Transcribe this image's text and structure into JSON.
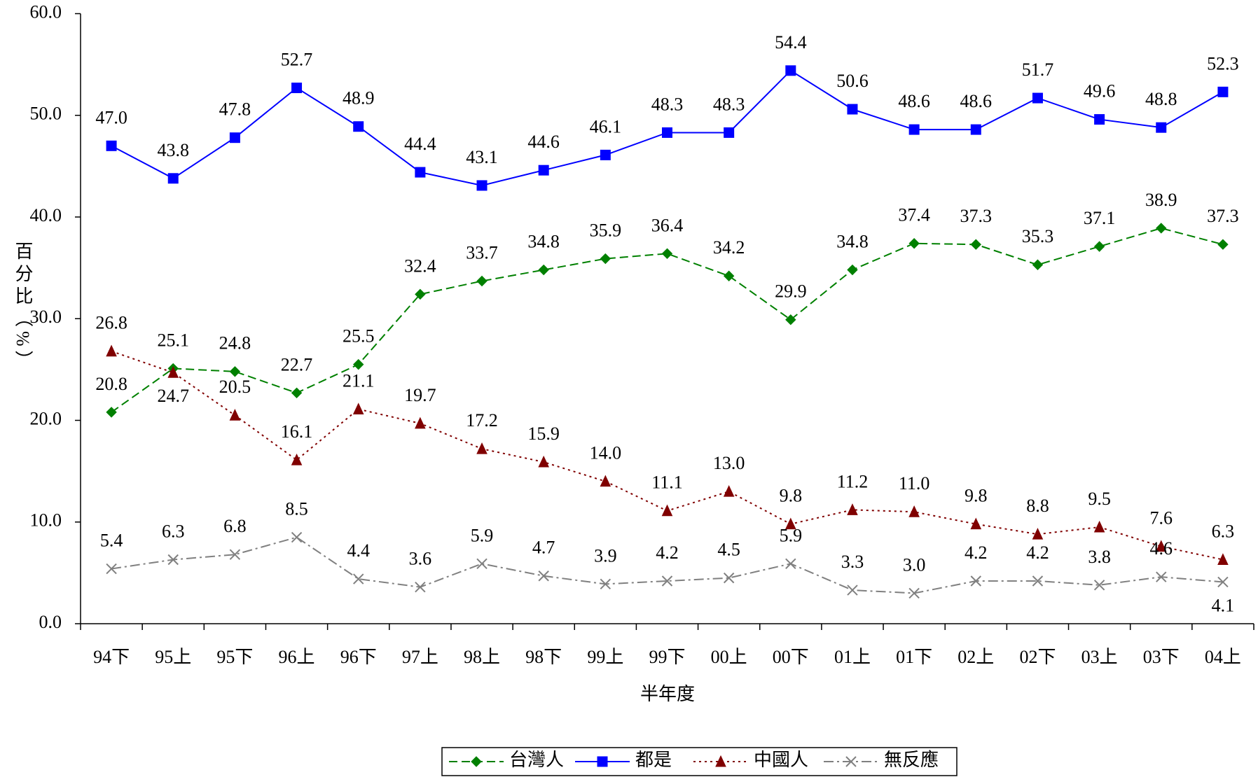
{
  "chart_data": {
    "type": "line",
    "y_label": "百分比（%）",
    "x_label": "半年度",
    "categories": [
      "94下",
      "95上",
      "95下",
      "96上",
      "96下",
      "97上",
      "98上",
      "98下",
      "99上",
      "99下",
      "00上",
      "00下",
      "01上",
      "01下",
      "02上",
      "02下",
      "03上",
      "03下",
      "04上"
    ],
    "series": [
      {
        "name": "台灣人",
        "color": "#008000",
        "marker": "diamond",
        "dash": "dashed",
        "values": [
          20.8,
          25.1,
          24.8,
          22.7,
          25.5,
          32.4,
          33.7,
          34.8,
          35.9,
          36.4,
          34.2,
          29.9,
          34.8,
          37.4,
          37.3,
          35.3,
          37.1,
          38.9,
          37.3
        ],
        "value_labels": [
          "20.8",
          "25.1",
          "24.8",
          "22.7",
          "25.5",
          "32.4",
          "33.7",
          "34.8",
          "35.9",
          "36.4",
          "34.2",
          "29.9",
          "34.8",
          "37.4",
          "37.3",
          "35.3",
          "37.1",
          "38.9",
          "37.3"
        ]
      },
      {
        "name": "都是",
        "color": "#0000ff",
        "marker": "square",
        "dash": "solid",
        "values": [
          47.0,
          43.8,
          47.8,
          52.7,
          48.9,
          44.4,
          43.1,
          44.6,
          46.1,
          48.3,
          48.3,
          54.4,
          50.6,
          48.6,
          48.6,
          51.7,
          49.6,
          48.8,
          52.3
        ],
        "value_labels": [
          "47.0",
          "43.8",
          "47.8",
          "52.7",
          "48.9",
          "44.4",
          "43.1",
          "44.6",
          "46.1",
          "48.3",
          "48.3",
          "54.4",
          "50.6",
          "48.6",
          "48.6",
          "51.7",
          "49.6",
          "48.8",
          "52.3"
        ]
      },
      {
        "name": "中國人",
        "color": "#800000",
        "marker": "triangle",
        "dash": "dotted",
        "values": [
          26.8,
          24.7,
          20.5,
          16.1,
          21.1,
          19.7,
          17.2,
          15.9,
          14.0,
          11.1,
          13.0,
          9.8,
          11.2,
          11.0,
          9.8,
          8.8,
          9.5,
          7.6,
          6.3
        ],
        "value_labels": [
          "26.8",
          "24.7",
          "20.5",
          "16.1",
          "21.1",
          "19.7",
          "17.2",
          "15.9",
          "14.0",
          "11.1",
          "13.0",
          "9.8",
          "11.2",
          "11.0",
          "9.8",
          "8.8",
          "9.5",
          "7.6",
          "6.3"
        ]
      },
      {
        "name": "無反應",
        "color": "#808080",
        "marker": "x",
        "dash": "dashdot",
        "values": [
          5.4,
          6.3,
          6.8,
          8.5,
          4.4,
          3.6,
          5.9,
          4.7,
          3.9,
          4.2,
          4.5,
          5.9,
          3.3,
          3.0,
          4.2,
          4.2,
          3.8,
          4.6,
          4.1
        ],
        "value_labels": [
          "5.4",
          "6.3",
          "6.8",
          "8.5",
          "4.4",
          "3.6",
          "5.9",
          "4.7",
          "3.9",
          "4.2",
          "4.5",
          "5.9",
          "3.3",
          "3.0",
          "4.2",
          "4.2",
          "3.8",
          "4.6",
          "4.1"
        ]
      }
    ],
    "ylim": [
      0,
      60
    ],
    "yticks": [
      {
        "value": 0,
        "label": "0.0"
      },
      {
        "value": 10,
        "label": "10.0"
      },
      {
        "value": 20,
        "label": "20.0"
      },
      {
        "value": 30,
        "label": "30.0"
      },
      {
        "value": 40,
        "label": "40.0"
      },
      {
        "value": 50,
        "label": "50.0"
      },
      {
        "value": 60,
        "label": "60.0"
      }
    ],
    "legend": "bottom"
  }
}
